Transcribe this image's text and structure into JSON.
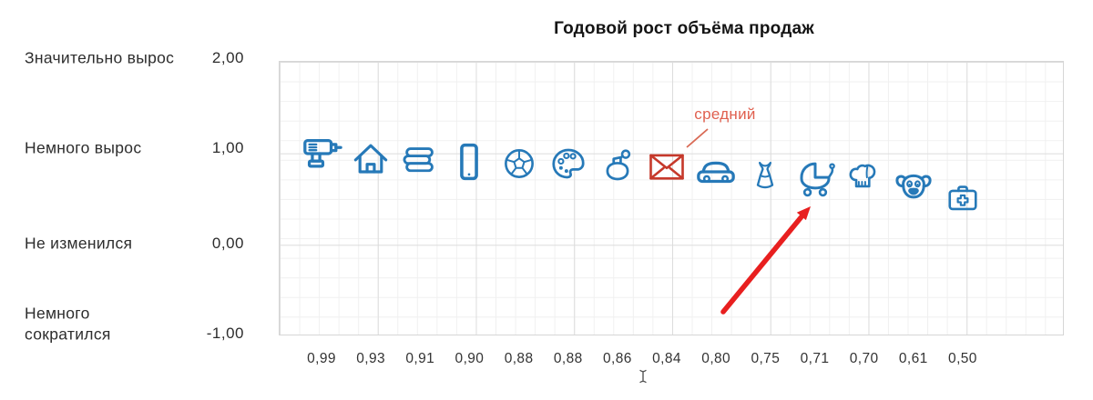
{
  "title_block": {
    "title": "Годовой рост объёма продаж"
  },
  "annotations": {
    "mean_label": "средний",
    "mean_target_label": "0,84",
    "arrow_target_label": "0,71",
    "mean_color": "#e0604f",
    "arrow_color": "#e81f1f"
  },
  "cursor": {
    "visible": true,
    "shape": "i-beam"
  },
  "colors": {
    "icon_blue": "#2679b8",
    "highlight_red": "#c6392b",
    "grid_minor": "#f0f0f0",
    "grid_major": "#dcdcdc",
    "title_color": "#141414"
  },
  "chart_data": {
    "type": "scatter",
    "title": "Годовой рост объёма продаж",
    "xlabel": "",
    "ylabel": "",
    "ylim": [
      -1,
      2
    ],
    "grid": true,
    "y_ticks": [
      {
        "value": 2,
        "value_label": "2,00",
        "text": "Значительно вырос"
      },
      {
        "value": 1,
        "value_label": "1,00",
        "text": "Немного вырос"
      },
      {
        "value": 0,
        "value_label": "0,00",
        "text": "Не изменился"
      },
      {
        "value": -1,
        "value_label": "-1,00",
        "text": "Немного сократился"
      }
    ],
    "points": [
      {
        "icon": "power-drill",
        "category": "инструменты",
        "value": 0.99,
        "label": "0,99",
        "highlight": false
      },
      {
        "icon": "house",
        "category": "дом",
        "value": 0.93,
        "label": "0,93",
        "highlight": false
      },
      {
        "icon": "books",
        "category": "книги",
        "value": 0.91,
        "label": "0,91",
        "highlight": false
      },
      {
        "icon": "smartphone",
        "category": "электроника",
        "value": 0.9,
        "label": "0,90",
        "highlight": false
      },
      {
        "icon": "soccer-ball",
        "category": "спорт",
        "value": 0.88,
        "label": "0,88",
        "highlight": false
      },
      {
        "icon": "paint-palette",
        "category": "хобби",
        "value": 0.88,
        "label": "0,88",
        "highlight": false
      },
      {
        "icon": "perfume",
        "category": "парфюмерия",
        "value": 0.86,
        "label": "0,86",
        "highlight": false
      },
      {
        "icon": "envelope",
        "category": "почта",
        "value": 0.84,
        "label": "0,84",
        "highlight": true,
        "annotation": "средний"
      },
      {
        "icon": "car",
        "category": "авто",
        "value": 0.8,
        "label": "0,80",
        "highlight": false
      },
      {
        "icon": "dress",
        "category": "одежда",
        "value": 0.75,
        "label": "0,75",
        "highlight": false
      },
      {
        "icon": "baby-stroller",
        "category": "детские товары",
        "value": 0.71,
        "label": "0,71",
        "highlight": false,
        "arrow": true
      },
      {
        "icon": "chef-hat",
        "category": "кулинария",
        "value": 0.7,
        "label": "0,70",
        "highlight": false
      },
      {
        "icon": "dog",
        "category": "зоотовары",
        "value": 0.61,
        "label": "0,61",
        "highlight": false
      },
      {
        "icon": "first-aid-kit",
        "category": "медицина",
        "value": 0.5,
        "label": "0,50",
        "highlight": false
      }
    ]
  }
}
